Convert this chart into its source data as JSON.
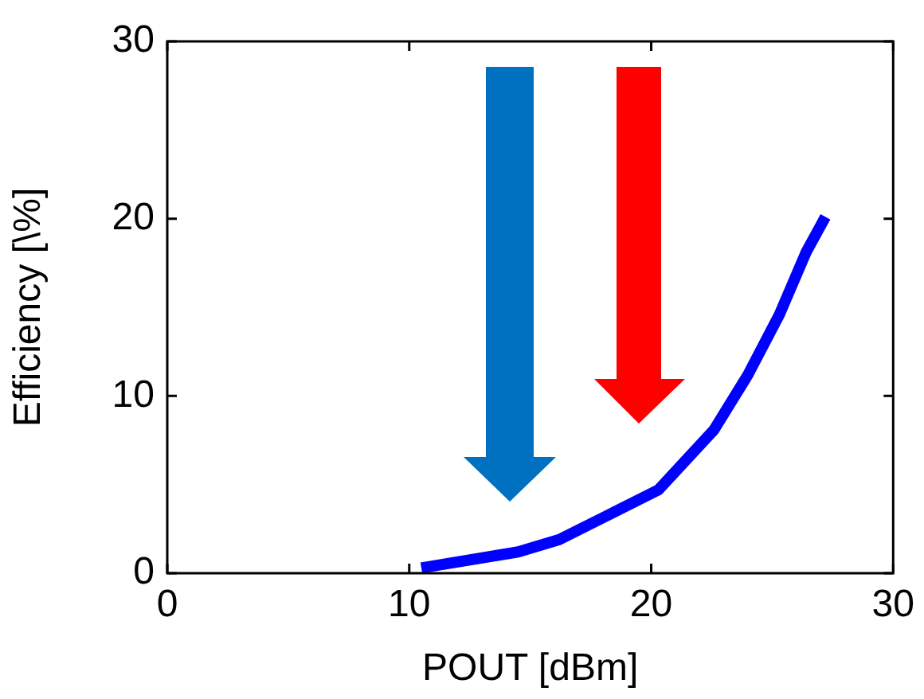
{
  "chart_data": {
    "type": "line",
    "xlabel": "POUT [dBm]",
    "ylabel": "Efficiency [\\%]",
    "x": [
      10.5,
      14.5,
      16.2,
      18.4,
      20.3,
      22.6,
      24.0,
      25.3,
      26.4,
      27.2
    ],
    "series": [
      {
        "color": "#0000ff",
        "values": [
          0.3,
          1.2,
          1.9,
          3.4,
          4.7,
          8.1,
          11.2,
          14.6,
          18.1,
          20.1
        ]
      }
    ],
    "xlim": [
      0,
      30
    ],
    "xticks": [
      0,
      10,
      20,
      30
    ],
    "ylim": [
      0,
      30
    ],
    "yticks": [
      0,
      10,
      20,
      30
    ],
    "grid": false,
    "legend": false,
    "marker": "none",
    "line_style": "solid"
  }
}
